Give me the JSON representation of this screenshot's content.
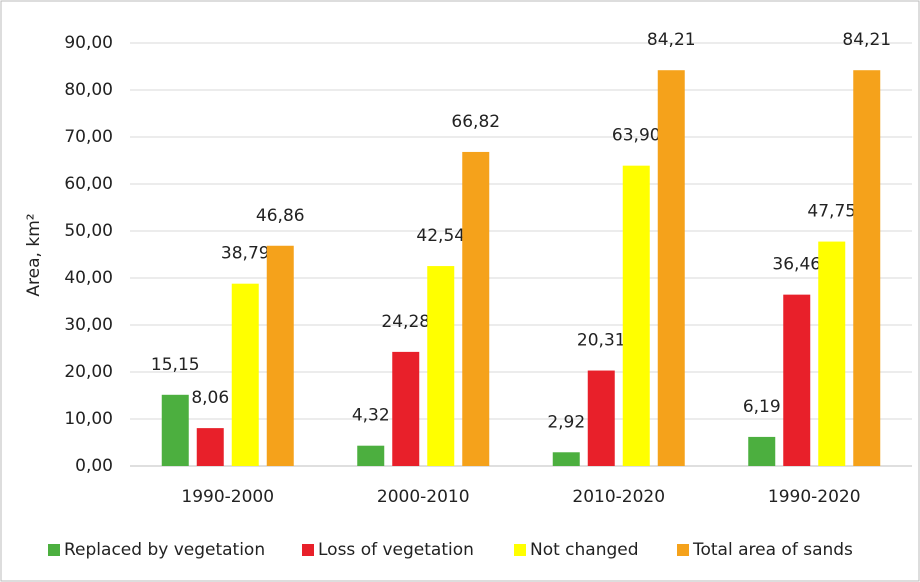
{
  "chart_data": {
    "type": "bar",
    "y_label": "Area, km²",
    "categories": [
      "1990-2000",
      "2000-2010",
      "2010-2020",
      "1990-2020"
    ],
    "series": [
      {
        "name": "Replaced by vegetation",
        "color": "#4caf3f",
        "values": [
          15.15,
          4.32,
          2.92,
          6.19
        ],
        "value_labels": [
          "15,15",
          "4,32",
          "2,92",
          "6,19"
        ]
      },
      {
        "name": "Loss of vegetation",
        "color": "#e8202a",
        "values": [
          8.06,
          24.28,
          20.31,
          36.46
        ],
        "value_labels": [
          "8,06",
          "24,28",
          "20,31",
          "36,46"
        ]
      },
      {
        "name": "Not changed",
        "color": "#ffff00",
        "values": [
          38.79,
          42.54,
          63.9,
          47.75
        ],
        "value_labels": [
          "38,79",
          "42,54",
          "63,90",
          "47,75"
        ]
      },
      {
        "name": "Total area of sands",
        "color": "#f5a21b",
        "values": [
          46.86,
          66.82,
          84.21,
          84.21
        ],
        "value_labels": [
          "46,86",
          "66,82",
          "84,21",
          "84,21"
        ]
      }
    ],
    "ylim": [
      0,
      90
    ],
    "yticks": [
      {
        "value": 0,
        "label": "0,00"
      },
      {
        "value": 10,
        "label": "10,00"
      },
      {
        "value": 20,
        "label": "20,00"
      },
      {
        "value": 30,
        "label": "30,00"
      },
      {
        "value": 40,
        "label": "40,00"
      },
      {
        "value": 50,
        "label": "50,00"
      },
      {
        "value": 60,
        "label": "60,00"
      },
      {
        "value": 70,
        "label": "70,00"
      },
      {
        "value": 80,
        "label": "80,00"
      },
      {
        "value": 90,
        "label": "90,00"
      }
    ],
    "grid": true,
    "legend": "bottom"
  }
}
